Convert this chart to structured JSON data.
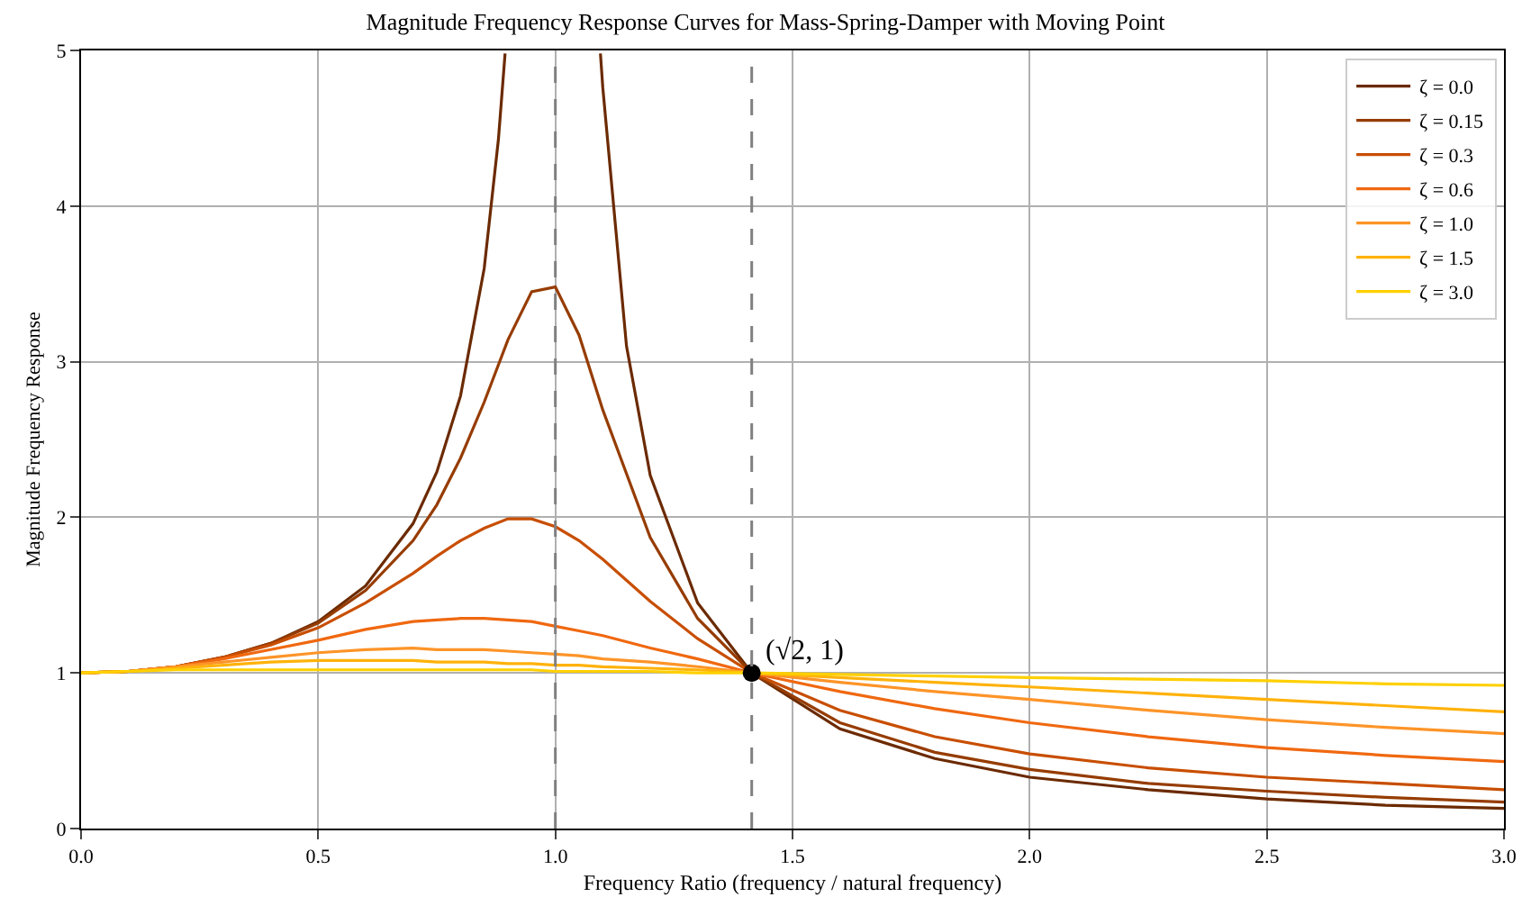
{
  "chart_data": {
    "type": "line",
    "title": "Magnitude Frequency Response Curves for Mass-Spring-Damper with Moving Point",
    "xlabel": "Frequency Ratio (frequency / natural frequency)",
    "ylabel": "Magnitude Frequency Response",
    "x": [
      0,
      0.1,
      0.2,
      0.3,
      0.4,
      0.5,
      0.6,
      0.7,
      0.75,
      0.8,
      0.85,
      0.9,
      0.95,
      1.0,
      1.05,
      1.1,
      1.2,
      1.3,
      1.414,
      1.6,
      1.8,
      2.0,
      2.25,
      2.5,
      2.75,
      3.0
    ],
    "series": [
      {
        "name": "ζ = 0.0",
        "color": "#6b2a00",
        "x": [
          0,
          0.1,
          0.2,
          0.3,
          0.4,
          0.5,
          0.6,
          0.7,
          0.75,
          0.8,
          0.85,
          0.88,
          0.894,
          1.0,
          1.095,
          1.1,
          1.15,
          1.2,
          1.3,
          1.414,
          1.6,
          1.8,
          2.0,
          2.25,
          2.5,
          2.75,
          3.0
        ],
        "values": [
          1,
          1.01,
          1.04,
          1.1,
          1.19,
          1.33,
          1.56,
          1.96,
          2.29,
          2.78,
          3.6,
          4.43,
          4.98,
          null,
          4.98,
          4.76,
          3.1,
          2.27,
          1.45,
          1,
          0.64,
          0.45,
          0.33,
          0.25,
          0.19,
          0.15,
          0.13
        ]
      },
      {
        "name": "ζ = 0.15",
        "color": "#963c00",
        "values": [
          1,
          1.01,
          1.04,
          1.1,
          1.19,
          1.32,
          1.53,
          1.85,
          2.08,
          2.38,
          2.74,
          3.14,
          3.45,
          3.48,
          3.17,
          2.69,
          1.87,
          1.35,
          1,
          0.68,
          0.49,
          0.38,
          0.29,
          0.24,
          0.2,
          0.17
        ]
      },
      {
        "name": "ζ = 0.3",
        "color": "#c84e00",
        "values": [
          1,
          1.01,
          1.04,
          1.1,
          1.18,
          1.29,
          1.45,
          1.64,
          1.75,
          1.85,
          1.93,
          1.99,
          1.99,
          1.94,
          1.85,
          1.73,
          1.46,
          1.22,
          1,
          0.76,
          0.59,
          0.48,
          0.39,
          0.33,
          0.29,
          0.25
        ]
      },
      {
        "name": "ζ = 0.6",
        "color": "#f06810",
        "values": [
          1,
          1.01,
          1.04,
          1.09,
          1.15,
          1.21,
          1.28,
          1.33,
          1.34,
          1.35,
          1.35,
          1.34,
          1.33,
          1.3,
          1.27,
          1.24,
          1.16,
          1.09,
          1,
          0.88,
          0.77,
          0.68,
          0.59,
          0.52,
          0.47,
          0.43
        ]
      },
      {
        "name": "ζ = 1.0",
        "color": "#fd9428",
        "values": [
          1,
          1.01,
          1.04,
          1.07,
          1.1,
          1.13,
          1.15,
          1.16,
          1.15,
          1.15,
          1.15,
          1.14,
          1.13,
          1.12,
          1.11,
          1.09,
          1.07,
          1.04,
          1,
          0.94,
          0.88,
          0.83,
          0.76,
          0.7,
          0.65,
          0.61
        ]
      },
      {
        "name": "ζ = 1.5",
        "color": "#ffb20a",
        "values": [
          1,
          1.01,
          1.03,
          1.05,
          1.07,
          1.08,
          1.08,
          1.08,
          1.07,
          1.07,
          1.07,
          1.06,
          1.06,
          1.05,
          1.05,
          1.04,
          1.03,
          1.02,
          1,
          0.97,
          0.94,
          0.91,
          0.87,
          0.83,
          0.79,
          0.75
        ]
      },
      {
        "name": "ζ = 3.0",
        "color": "#ffd000",
        "values": [
          1,
          1.01,
          1.02,
          1.02,
          1.02,
          1.02,
          1.02,
          1.02,
          1.02,
          1.02,
          1.02,
          1.02,
          1.02,
          1.01,
          1.01,
          1.01,
          1.01,
          1,
          1,
          0.99,
          0.98,
          0.97,
          0.96,
          0.95,
          0.93,
          0.92
        ]
      },
      {
        "type": "scatter",
        "color": "#000000",
        "marker": "circle",
        "x": [
          1.414
        ],
        "values": [
          1
        ]
      }
    ],
    "ref_lines": [
      {
        "axis": "x",
        "value": 1,
        "color": "#808080",
        "line_style": "dashed"
      },
      {
        "axis": "x",
        "value": 1.414,
        "color": "#808080",
        "line_style": "dashed"
      }
    ],
    "annotations": [
      {
        "text": "(√2, 1)",
        "x": 1.414,
        "y": 1
      }
    ],
    "xlim": [
      0,
      3
    ],
    "xticks": [
      {
        "value": 0,
        "label": "0.0"
      },
      0.5,
      {
        "value": 1,
        "label": "1.0"
      },
      1.5,
      {
        "value": 2,
        "label": "2.0"
      },
      2.5,
      {
        "value": 3,
        "label": "3.0"
      }
    ],
    "ylim": [
      0,
      5
    ],
    "yticks": [
      0,
      1,
      2,
      3,
      4,
      5
    ],
    "grid": true,
    "legend": "top right",
    "marker": "none",
    "line_style": "solid"
  }
}
